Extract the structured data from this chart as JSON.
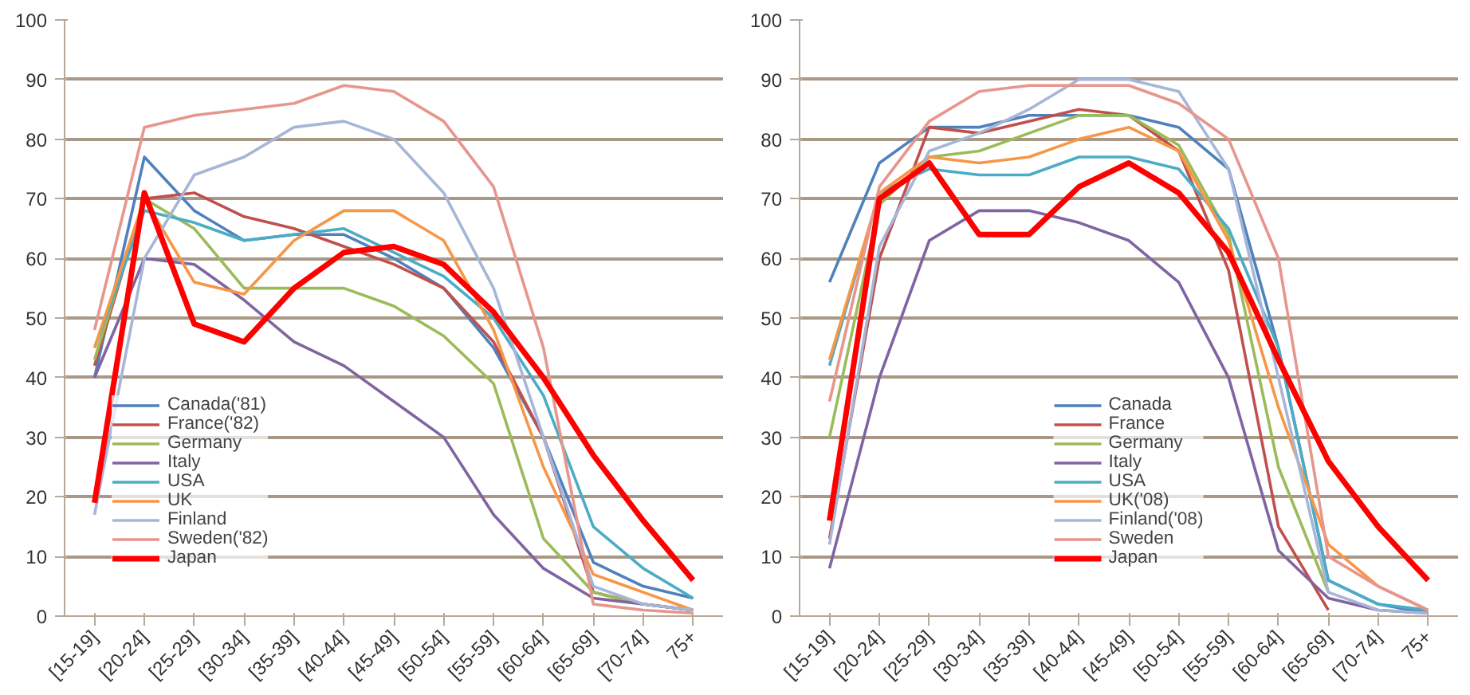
{
  "chart_data": [
    {
      "type": "line",
      "categories": [
        "[15-19]",
        "[20-24]",
        "[25-29]",
        "[30-34]",
        "[35-39]",
        "[40-44]",
        "[45-49]",
        "[50-54]",
        "[55-59]",
        "[60-64]",
        "[65-69]",
        "[70-74]",
        "75+"
      ],
      "ylim": [
        0,
        100
      ],
      "yticks": [
        0,
        10,
        20,
        30,
        40,
        50,
        60,
        70,
        80,
        90,
        100
      ],
      "grid": "y",
      "legend": "bottom left",
      "marker": "none",
      "line_style": "solid",
      "series": [
        {
          "name": "Canada('81)",
          "color": "#4f81bd",
          "values": [
            40,
            77,
            68,
            63,
            64,
            64,
            60,
            55,
            45,
            30,
            9,
            5,
            3
          ]
        },
        {
          "name": "France('82)",
          "color": "#c0504d",
          "values": [
            42,
            70,
            71,
            67,
            65,
            62,
            59,
            55,
            46,
            30,
            4,
            2,
            1
          ]
        },
        {
          "name": "Germany",
          "color": "#9bbb59",
          "values": [
            43,
            70,
            65,
            55,
            55,
            55,
            52,
            47,
            39,
            13,
            4,
            2,
            1
          ]
        },
        {
          "name": "Italy",
          "color": "#8064a2",
          "values": [
            40,
            60,
            59,
            53,
            46,
            42,
            36,
            30,
            17,
            8,
            3,
            2,
            1
          ]
        },
        {
          "name": "USA",
          "color": "#4bacc6",
          "values": [
            45,
            68,
            66,
            63,
            64,
            65,
            61,
            57,
            50,
            37,
            15,
            8,
            3
          ]
        },
        {
          "name": "UK",
          "color": "#f79646",
          "values": [
            45,
            70,
            56,
            54,
            63,
            68,
            68,
            63,
            48,
            25,
            7,
            4,
            1
          ]
        },
        {
          "name": "Finland",
          "color": "#a6b6d8",
          "values": [
            17,
            60,
            74,
            77,
            82,
            83,
            80,
            71,
            55,
            30,
            5,
            2,
            1
          ]
        },
        {
          "name": "Sweden('82)",
          "color": "#e6968c",
          "values": [
            48,
            82,
            84,
            85,
            86,
            89,
            88,
            83,
            72,
            45,
            2,
            1,
            0.5
          ]
        },
        {
          "name": "Japan",
          "color": "#ff0000",
          "values": [
            19,
            71,
            49,
            46,
            55,
            61,
            62,
            59,
            51,
            40,
            27,
            16,
            6
          ]
        }
      ]
    },
    {
      "type": "line",
      "categories": [
        "[15-19]",
        "[20-24]",
        "[25-29]",
        "[30-34]",
        "[35-39]",
        "[40-44]",
        "[45-49]",
        "[50-54]",
        "[55-59]",
        "[60-64]",
        "[65-69]",
        "[70-74]",
        "75+"
      ],
      "ylim": [
        0,
        100
      ],
      "yticks": [
        0,
        10,
        20,
        30,
        40,
        50,
        60,
        70,
        80,
        90,
        100
      ],
      "grid": "y",
      "legend": "bottom",
      "marker": "none",
      "line_style": "solid",
      "series": [
        {
          "name": "Canada",
          "color": "#4f81bd",
          "values": [
            56,
            76,
            82,
            82,
            84,
            84,
            84,
            82,
            75,
            45,
            6,
            2,
            0.5
          ]
        },
        {
          "name": "France",
          "color": "#c0504d",
          "values": [
            13,
            60,
            82,
            81,
            83,
            85,
            84,
            78,
            58,
            15,
            1,
            null,
            null
          ]
        },
        {
          "name": "Germany",
          "color": "#9bbb59",
          "values": [
            30,
            69,
            77,
            78,
            81,
            84,
            84,
            79,
            64,
            25,
            4,
            null,
            null
          ]
        },
        {
          "name": "Italy",
          "color": "#8064a2",
          "values": [
            8,
            40,
            63,
            68,
            68,
            66,
            63,
            56,
            40,
            11,
            3,
            1,
            0.5
          ]
        },
        {
          "name": "USA",
          "color": "#4bacc6",
          "values": [
            42,
            71,
            75,
            74,
            74,
            77,
            77,
            75,
            65,
            45,
            6,
            2,
            1
          ]
        },
        {
          "name": "UK('08)",
          "color": "#f79646",
          "values": [
            43,
            71,
            77,
            76,
            77,
            80,
            82,
            78,
            63,
            35,
            12,
            5,
            1
          ]
        },
        {
          "name": "Finland('08)",
          "color": "#a6b6d8",
          "values": [
            12,
            62,
            78,
            81,
            85,
            90,
            90,
            88,
            75,
            40,
            4,
            1,
            0.5
          ]
        },
        {
          "name": "Sweden",
          "color": "#e6968c",
          "values": [
            36,
            72,
            83,
            88,
            89,
            89,
            89,
            86,
            80,
            60,
            10,
            5,
            1
          ]
        },
        {
          "name": "Japan",
          "color": "#ff0000",
          "values": [
            16,
            70,
            76,
            64,
            64,
            72,
            76,
            71,
            61,
            43,
            26,
            15,
            6
          ]
        }
      ]
    }
  ]
}
